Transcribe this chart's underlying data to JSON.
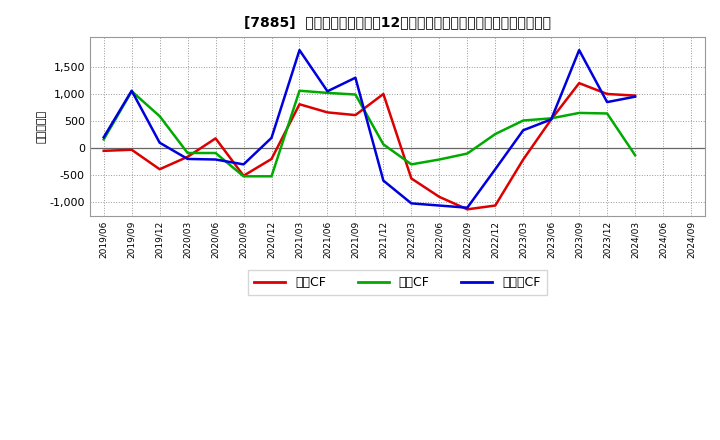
{
  "title": "[7885]  キャッシュフローの12か月移動合計の対前年同期増減額の推移",
  "ylabel": "（百万円）",
  "background_color": "#ffffff",
  "plot_bg_color": "#ffffff",
  "x_labels": [
    "2019/06",
    "2019/09",
    "2019/12",
    "2020/03",
    "2020/06",
    "2020/09",
    "2020/12",
    "2021/03",
    "2021/06",
    "2021/09",
    "2021/12",
    "2022/03",
    "2022/06",
    "2022/09",
    "2022/12",
    "2023/03",
    "2023/06",
    "2023/09",
    "2023/12",
    "2024/03",
    "2024/06",
    "2024/09"
  ],
  "series": {
    "営業CF": {
      "color": "#dd0000",
      "values": [
        -50,
        -30,
        -390,
        -160,
        180,
        -510,
        -200,
        810,
        660,
        610,
        1000,
        -560,
        -900,
        -1130,
        -1060,
        -210,
        530,
        1200,
        1000,
        970,
        null,
        null
      ]
    },
    "投賄CF": {
      "color": "#00aa00",
      "values": [
        160,
        1050,
        590,
        -90,
        -90,
        -520,
        -520,
        1060,
        1020,
        990,
        70,
        -300,
        -210,
        -100,
        260,
        510,
        550,
        650,
        640,
        -130,
        null,
        null
      ]
    },
    "フリーCF": {
      "color": "#0000dd",
      "values": [
        200,
        1060,
        100,
        -200,
        -210,
        -300,
        190,
        1810,
        1050,
        1300,
        -600,
        -1020,
        -1060,
        -1100,
        -390,
        330,
        530,
        1810,
        850,
        950,
        null,
        null
      ]
    }
  },
  "ylim": [
    -1250,
    2050
  ],
  "yticks": [
    -1000,
    -500,
    0,
    500,
    1000,
    1500
  ],
  "legend_labels": [
    "営業CF",
    "投賄CF",
    "フリーCF"
  ],
  "legend_colors": [
    "#dd0000",
    "#00aa00",
    "#0000dd"
  ]
}
